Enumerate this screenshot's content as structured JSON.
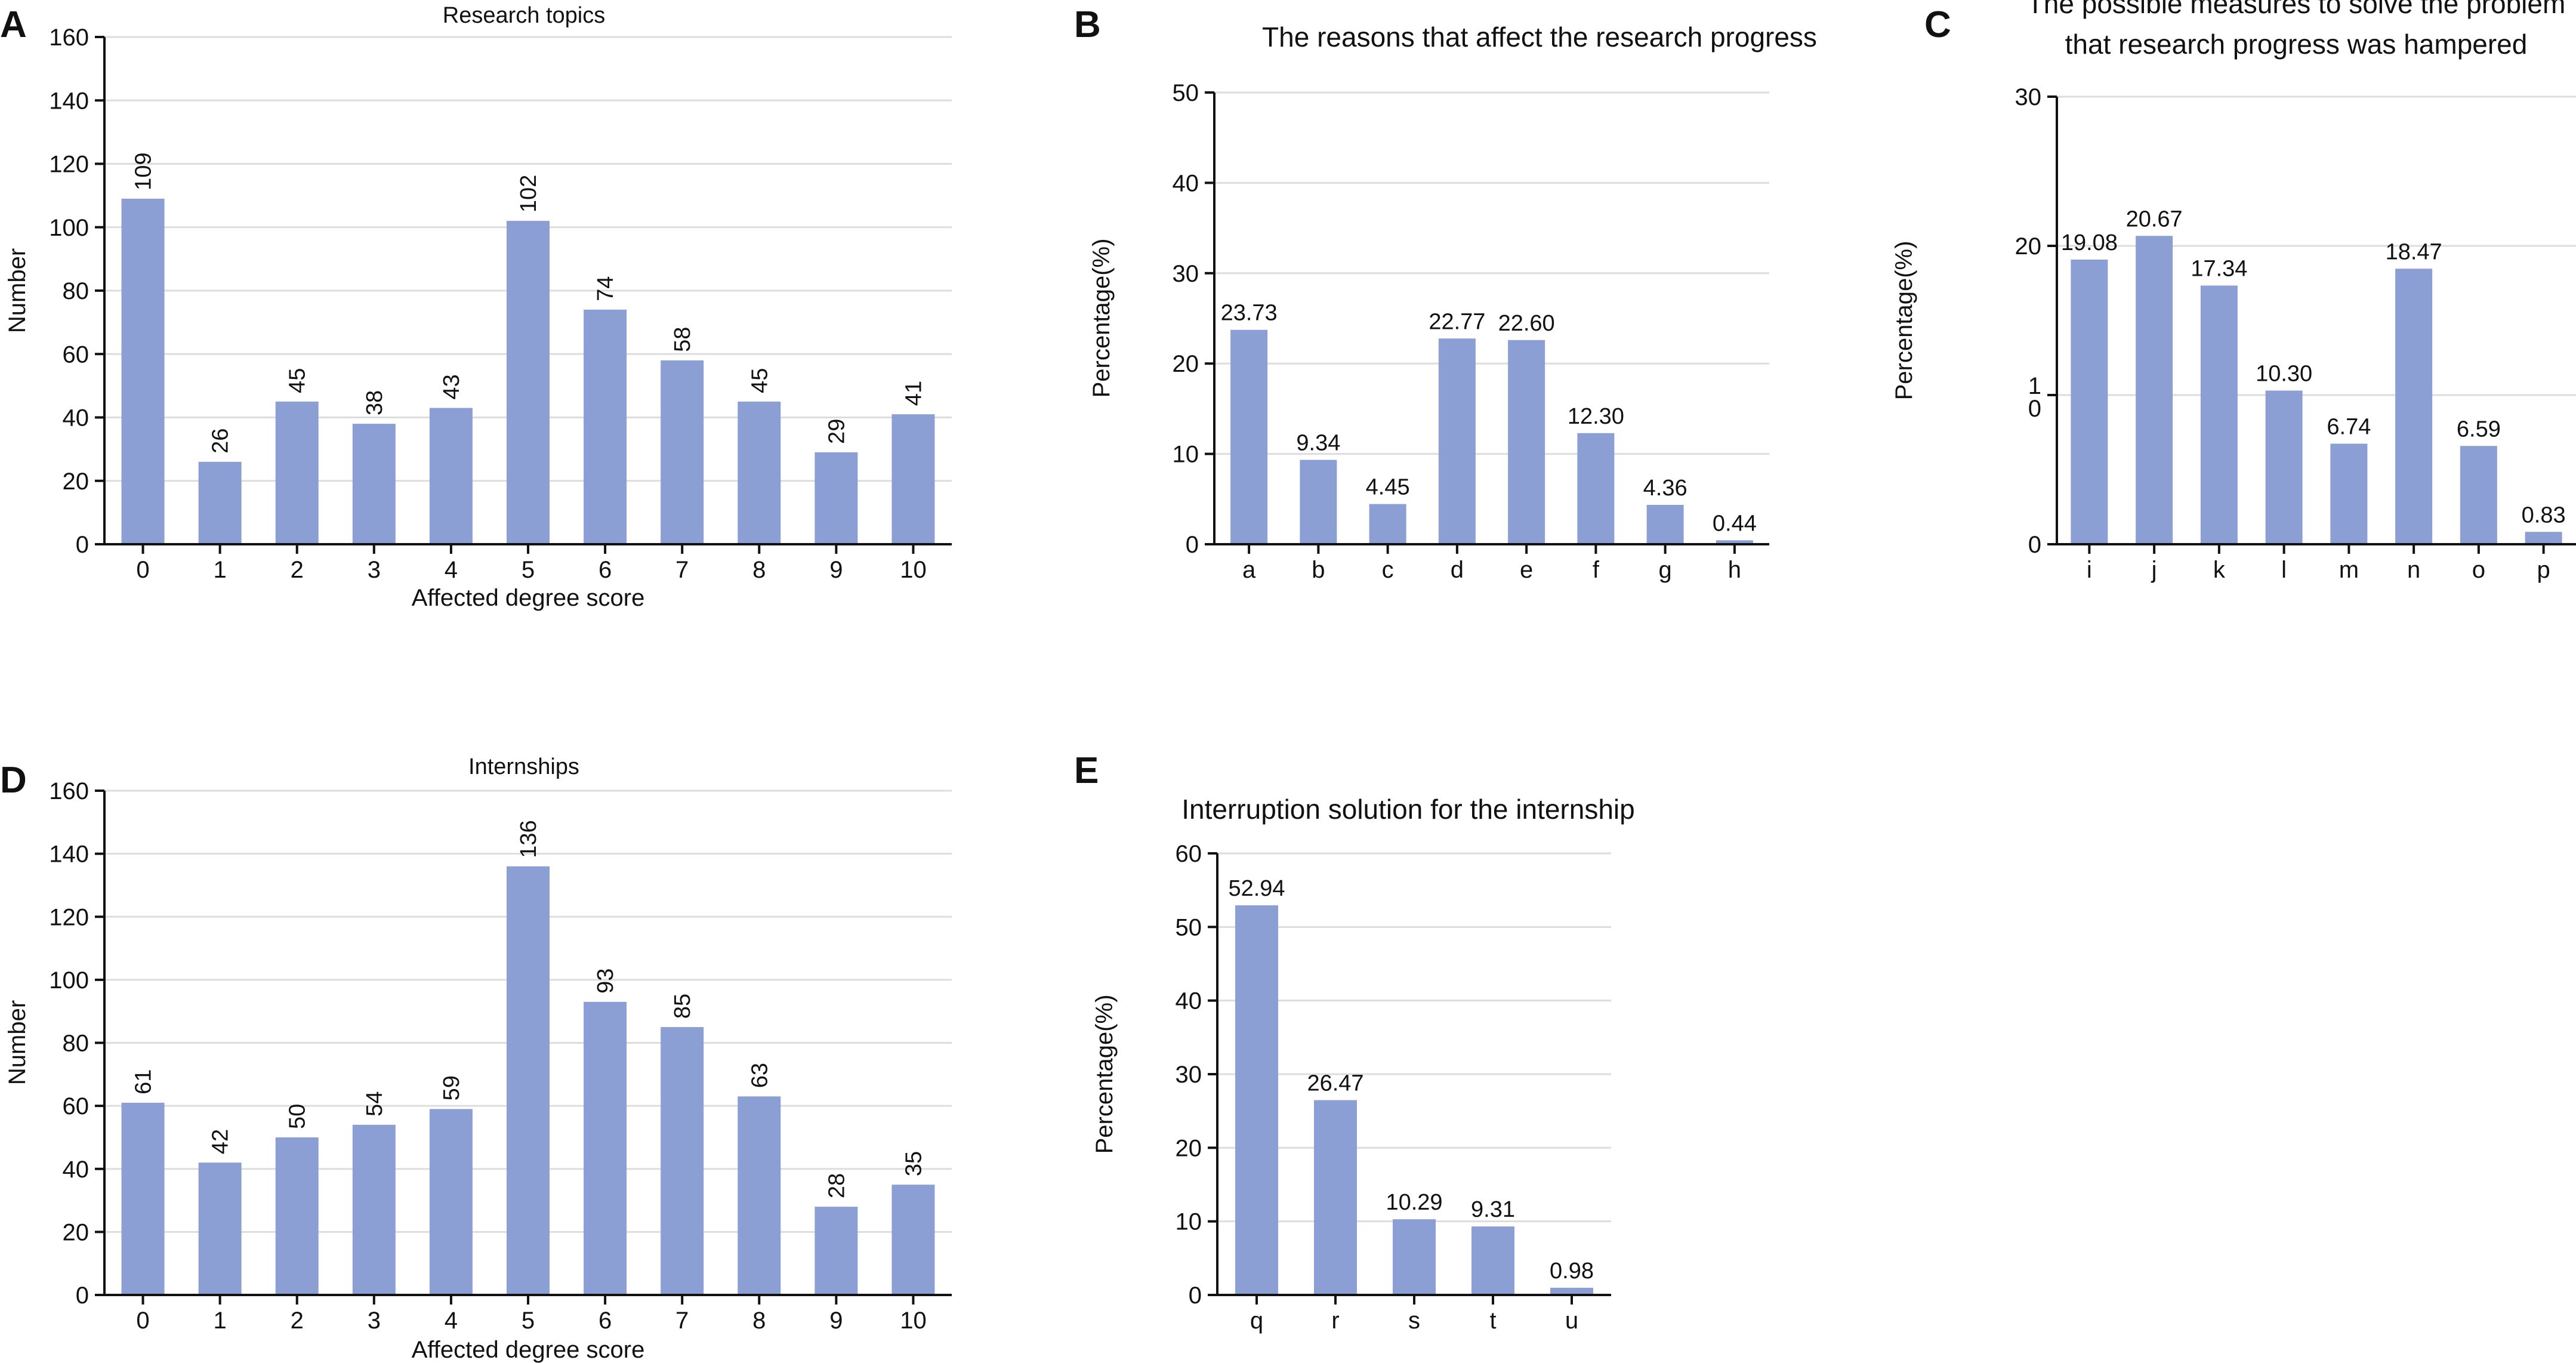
{
  "colors": {
    "bar": "#8c9fd4",
    "axis": "#111111",
    "grid": "#dddddd",
    "text": "#111111"
  },
  "chart_data": [
    {
      "id": "A",
      "panel": "A",
      "type": "bar",
      "title": "Research topics",
      "xlabel": "Affected degree score",
      "ylabel": "Number",
      "categories": [
        "0",
        "1",
        "2",
        "3",
        "4",
        "5",
        "6",
        "7",
        "8",
        "9",
        "10"
      ],
      "values": [
        109,
        26,
        45,
        38,
        43,
        102,
        74,
        58,
        45,
        29,
        41
      ],
      "value_labels": [
        "109",
        "26",
        "45",
        "38",
        "43",
        "102",
        "74",
        "58",
        "45",
        "29",
        "41"
      ],
      "value_label_orientation": "vertical",
      "ylim": [
        0,
        160
      ],
      "yticks": [
        0,
        20,
        40,
        60,
        80,
        100,
        120,
        140,
        160
      ],
      "ytick_labels": [
        "0",
        "20",
        "40",
        "60",
        "80",
        "100",
        "120",
        "140",
        "160"
      ],
      "grid": true
    },
    {
      "id": "B",
      "panel": "B",
      "type": "bar",
      "title": "The reasons that affect the research progress",
      "xlabel": "",
      "ylabel": "Percentage(%)",
      "categories": [
        "a",
        "b",
        "c",
        "d",
        "e",
        "f",
        "g",
        "h"
      ],
      "values": [
        23.73,
        9.34,
        4.45,
        22.77,
        22.6,
        12.3,
        4.36,
        0.44
      ],
      "value_labels": [
        "23.73",
        "9.34",
        "4.45",
        "22.77",
        "22.60",
        "12.30",
        "4.36",
        "0.44"
      ],
      "value_label_orientation": "horizontal",
      "ylim": [
        0,
        50
      ],
      "yticks": [
        0,
        10,
        20,
        30,
        40,
        50
      ],
      "ytick_labels": [
        "0",
        "10",
        "20",
        "30",
        "40",
        "50"
      ],
      "grid": true
    },
    {
      "id": "C",
      "panel": "C",
      "type": "bar",
      "title": "The possible measures to solve the problem",
      "title_line2": "that research progress was hampered",
      "xlabel": "",
      "ylabel": "Percentage(%)",
      "categories": [
        "i",
        "j",
        "k",
        "l",
        "m",
        "n",
        "o",
        "p"
      ],
      "values": [
        19.08,
        20.67,
        17.34,
        10.3,
        6.74,
        18.47,
        6.59,
        0.83
      ],
      "value_labels": [
        "19.08",
        "20.67",
        "17.34",
        "10.30",
        "6.74",
        "18.47",
        "6.59",
        "0.83"
      ],
      "value_label_orientation": "horizontal",
      "ylim": [
        0,
        30
      ],
      "yticks": [
        0,
        10,
        20,
        30
      ],
      "ytick_labels": [
        "0",
        "1\n0",
        "20",
        "30"
      ],
      "grid": true
    },
    {
      "id": "D",
      "panel": "D",
      "type": "bar",
      "title": "Internships",
      "xlabel": "Affected degree score",
      "ylabel": "Number",
      "categories": [
        "0",
        "1",
        "2",
        "3",
        "4",
        "5",
        "6",
        "7",
        "8",
        "9",
        "10"
      ],
      "values": [
        61,
        42,
        50,
        54,
        59,
        136,
        93,
        85,
        63,
        28,
        35
      ],
      "value_labels": [
        "61",
        "42",
        "50",
        "54",
        "59",
        "136",
        "93",
        "85",
        "63",
        "28",
        "35"
      ],
      "value_label_orientation": "vertical",
      "ylim": [
        0,
        160
      ],
      "yticks": [
        0,
        20,
        40,
        60,
        80,
        100,
        120,
        140,
        160
      ],
      "ytick_labels": [
        "0",
        "20",
        "40",
        "60",
        "80",
        "100",
        "120",
        "140",
        "160"
      ],
      "grid": true
    },
    {
      "id": "E",
      "panel": "E",
      "type": "bar",
      "title": "Interruption solution for the internship",
      "xlabel": "",
      "ylabel": "Percentage(%)",
      "categories": [
        "q",
        "r",
        "s",
        "t",
        "u"
      ],
      "values": [
        52.94,
        26.47,
        10.29,
        9.31,
        0.98
      ],
      "value_labels": [
        "52.94",
        "26.47",
        "10.29",
        "9.31",
        "0.98"
      ],
      "value_label_orientation": "horizontal",
      "ylim": [
        0,
        60
      ],
      "yticks": [
        0,
        10,
        20,
        30,
        40,
        50,
        60
      ],
      "ytick_labels": [
        "0",
        "10",
        "20",
        "30",
        "40",
        "50",
        "60"
      ],
      "grid": true
    }
  ]
}
